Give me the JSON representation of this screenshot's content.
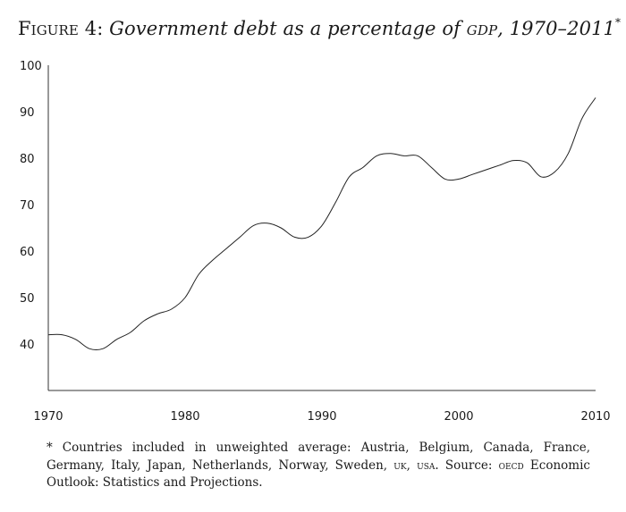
{
  "title": {
    "figure_label": "Figure 4:",
    "text": "Government debt as a percentage of",
    "gdp": "gdp",
    "years": ", 1970–2011",
    "marker": "*"
  },
  "chart_data": {
    "type": "line",
    "title": "Government debt as a percentage of GDP, 1970–2011",
    "xlabel": "",
    "ylabel": "",
    "xlim": [
      1970,
      2010
    ],
    "ylim": [
      30,
      100
    ],
    "grid": false,
    "y_ticks": [
      40,
      50,
      60,
      70,
      80,
      90,
      100
    ],
    "x_ticks": [
      1970,
      1980,
      1990,
      2000,
      2010
    ],
    "series": [
      {
        "name": "Government debt (% of GDP)",
        "x": [
          1970,
          1971,
          1972,
          1973,
          1974,
          1975,
          1976,
          1977,
          1978,
          1979,
          1980,
          1981,
          1982,
          1983,
          1984,
          1985,
          1986,
          1987,
          1988,
          1989,
          1990,
          1991,
          1992,
          1993,
          1994,
          1995,
          1996,
          1997,
          1998,
          1999,
          2000,
          2001,
          2002,
          2003,
          2004,
          2005,
          2006,
          2007,
          2008,
          2009,
          2010
        ],
        "values": [
          42,
          42,
          41,
          39,
          39,
          41,
          42.5,
          45,
          46.5,
          47.5,
          50,
          55,
          58,
          60.5,
          63,
          65.5,
          66,
          65,
          63,
          63,
          65.5,
          70.5,
          76,
          78,
          80.5,
          81,
          80.5,
          80.5,
          78,
          75.5,
          75.5,
          76.5,
          77.5,
          78.5,
          79.5,
          79,
          76,
          77,
          81,
          88.5,
          93
        ]
      }
    ]
  },
  "footnote": {
    "p1": "* Countries included in unweighted average: Austria, Belgium, Canada, France, Germany, Italy, Japan, Netherlands, Norway, Sweden, ",
    "uk": "uk",
    "sep": ", ",
    "usa": "usa",
    "p2": ". Source: ",
    "oecd": "oecd",
    "p3": " Economic Outlook: Statistics and Projections."
  }
}
